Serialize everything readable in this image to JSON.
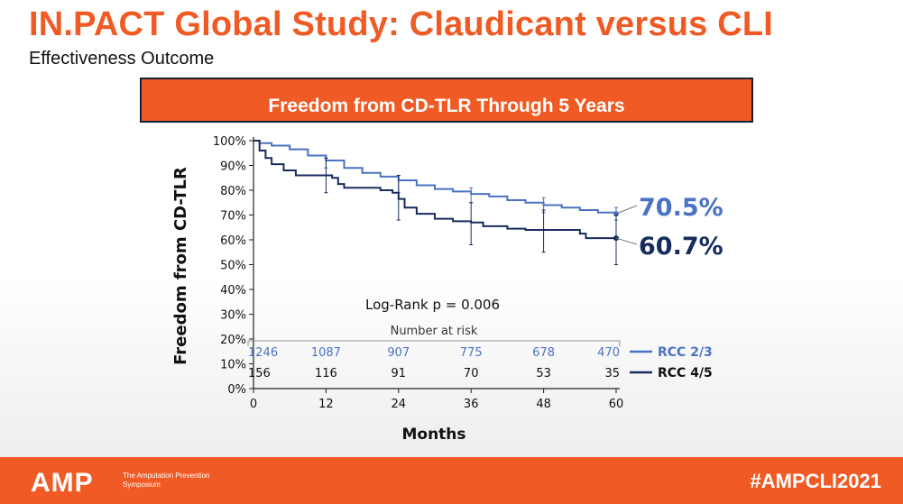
{
  "slide": {
    "title": "IN.PACT Global Study: Claudicant versus CLI",
    "subtitle": "Effectiveness Outcome",
    "banner_title": "Freedom from CD-TLR Through 5 Years"
  },
  "footer": {
    "logo": "AMP",
    "org_name": "The Amputation Prevention Symposium",
    "hashtag": "#AMPCLI2021"
  },
  "colors": {
    "accent": "#f05a24",
    "rcc23": "#4a72c4",
    "rcc45": "#172b5e"
  },
  "chart_data": {
    "type": "line",
    "title": "Freedom from CD-TLR Through 5 Years",
    "xlabel": "Months",
    "ylabel": "Freedom from CD-TLR",
    "xlim": [
      0,
      60
    ],
    "ylim": [
      0,
      100
    ],
    "x_ticks": [
      0,
      12,
      24,
      36,
      48,
      60
    ],
    "y_ticks": [
      "0%",
      "10%",
      "20%",
      "30%",
      "40%",
      "50%",
      "60%",
      "70%",
      "80%",
      "90%",
      "100%"
    ],
    "annotation": "Log-Rank p = 0.006",
    "risk_table_title": "Number at risk",
    "series": [
      {
        "name": "RCC 2/3",
        "final_label": "70.5%",
        "final_value": 70.5,
        "points": [
          [
            0,
            100
          ],
          [
            1,
            99
          ],
          [
            3,
            98
          ],
          [
            6,
            96.5
          ],
          [
            9,
            94
          ],
          [
            12,
            92
          ],
          [
            15,
            89
          ],
          [
            18,
            87
          ],
          [
            21,
            85.5
          ],
          [
            24,
            84
          ],
          [
            27,
            82
          ],
          [
            30,
            80.5
          ],
          [
            33,
            79.5
          ],
          [
            36,
            78.5
          ],
          [
            39,
            77.5
          ],
          [
            42,
            76
          ],
          [
            45,
            75
          ],
          [
            48,
            74
          ],
          [
            51,
            73
          ],
          [
            54,
            72
          ],
          [
            57,
            71
          ],
          [
            60,
            70.5
          ]
        ],
        "error_bars": [
          [
            12,
            93,
            89
          ],
          [
            24,
            86,
            79
          ],
          [
            36,
            81,
            75
          ],
          [
            48,
            77,
            71
          ],
          [
            60,
            73,
            68
          ]
        ],
        "at_risk": [
          "1246",
          "1087",
          "907",
          "775",
          "678",
          "470"
        ]
      },
      {
        "name": "RCC 4/5",
        "final_label": "60.7%",
        "final_value": 60.7,
        "points": [
          [
            0,
            100
          ],
          [
            1,
            96
          ],
          [
            2,
            93
          ],
          [
            3,
            90.5
          ],
          [
            5,
            88
          ],
          [
            7,
            86
          ],
          [
            9,
            86
          ],
          [
            12,
            86
          ],
          [
            13,
            85
          ],
          [
            14,
            82.5
          ],
          [
            15,
            81
          ],
          [
            18,
            81
          ],
          [
            21,
            80
          ],
          [
            23,
            79
          ],
          [
            24,
            76.5
          ],
          [
            25,
            73
          ],
          [
            27,
            70.5
          ],
          [
            30,
            68.5
          ],
          [
            33,
            67.5
          ],
          [
            36,
            67
          ],
          [
            38,
            65.5
          ],
          [
            42,
            64.5
          ],
          [
            45,
            64
          ],
          [
            48,
            64
          ],
          [
            54,
            62.5
          ],
          [
            55,
            60.7
          ],
          [
            60,
            60.7
          ]
        ],
        "error_bars": [
          [
            12,
            93,
            79
          ],
          [
            24,
            86,
            68
          ],
          [
            36,
            75,
            58
          ],
          [
            48,
            72,
            55
          ],
          [
            60,
            70,
            50
          ]
        ],
        "at_risk": [
          "156",
          "116",
          "91",
          "70",
          "53",
          "35"
        ]
      }
    ]
  }
}
